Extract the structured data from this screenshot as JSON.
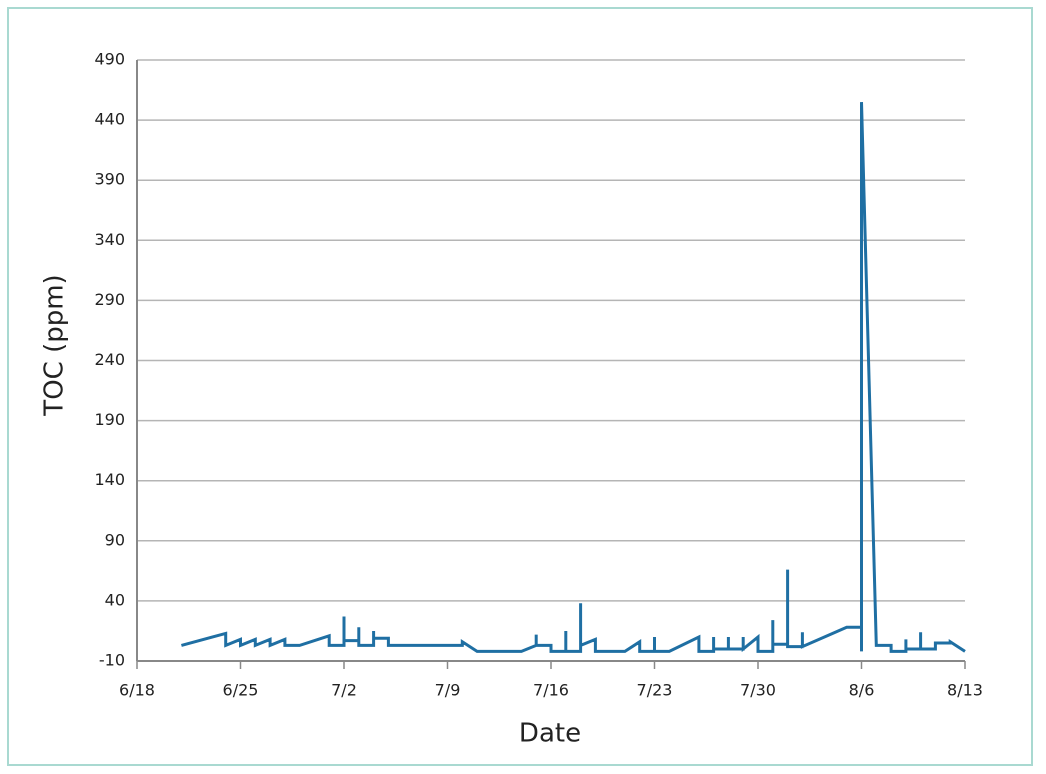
{
  "chart_data": {
    "type": "line",
    "x_label": "Date",
    "y_label": "TOC (ppm)",
    "color": "#1f6fa3",
    "xlim": [
      "6/18",
      "8/13"
    ],
    "xticks": [
      "6/18",
      "6/25",
      "7/2",
      "7/9",
      "7/16",
      "7/23",
      "7/30",
      "8/6",
      "8/13"
    ],
    "ylim": [
      -10,
      490
    ],
    "yticks": [
      -10,
      40,
      90,
      140,
      190,
      240,
      290,
      340,
      390,
      440,
      490
    ],
    "grid": true,
    "x": [
      "6/21",
      "6/24",
      "6/24",
      "6/25",
      "6/25",
      "6/26",
      "6/26",
      "6/27",
      "6/27",
      "6/28",
      "6/28",
      "6/29",
      "7/1",
      "7/1",
      "7/2",
      "7/2",
      "7/2",
      "7/3",
      "7/3",
      "7/3",
      "7/4",
      "7/4",
      "7/4",
      "7/5",
      "7/5",
      "7/10",
      "7/10",
      "7/11",
      "7/14",
      "7/15",
      "7/15",
      "7/15",
      "7/16",
      "7/16",
      "7/17",
      "7/17",
      "7/17",
      "7/18",
      "7/18",
      "7/18",
      "7/19",
      "7/19",
      "7/21",
      "7/22",
      "7/22",
      "7/23",
      "7/23",
      "7/23",
      "7/24",
      "7/26",
      "7/26",
      "7/27",
      "7/27",
      "7/27",
      "7/28",
      "7/28",
      "7/28",
      "7/29",
      "7/29",
      "7/29",
      "7/30",
      "7/30",
      "7/31",
      "7/31",
      "7/31",
      "8/1",
      "8/1",
      "8/1",
      "8/2",
      "8/2",
      "8/2",
      "8/5",
      "8/6",
      "8/6",
      "8/6",
      "8/7",
      "8/8",
      "8/8",
      "8/9",
      "8/9",
      "8/9",
      "8/10",
      "8/10",
      "8/10",
      "8/11",
      "8/11",
      "8/12",
      "8/12",
      "8/13"
    ],
    "values": [
      3,
      13,
      3,
      8,
      3,
      8,
      3,
      8,
      3,
      8,
      3,
      3,
      11,
      3,
      3,
      27,
      7,
      7,
      18,
      3,
      3,
      15,
      9,
      9,
      3,
      3,
      6,
      -2,
      -2,
      3,
      12,
      3,
      3,
      -2,
      -2,
      15,
      -2,
      -2,
      38,
      3,
      8,
      -2,
      -2,
      6,
      -2,
      -2,
      10,
      -2,
      -2,
      10,
      -2,
      -2,
      10,
      0,
      0,
      10,
      0,
      0,
      10,
      0,
      10,
      -2,
      -2,
      24,
      4,
      4,
      66,
      2,
      2,
      14,
      2,
      18,
      18,
      -2,
      455,
      3,
      3,
      -2,
      -2,
      8,
      0,
      0,
      14,
      0,
      0,
      5,
      5,
      6,
      -2
    ]
  }
}
